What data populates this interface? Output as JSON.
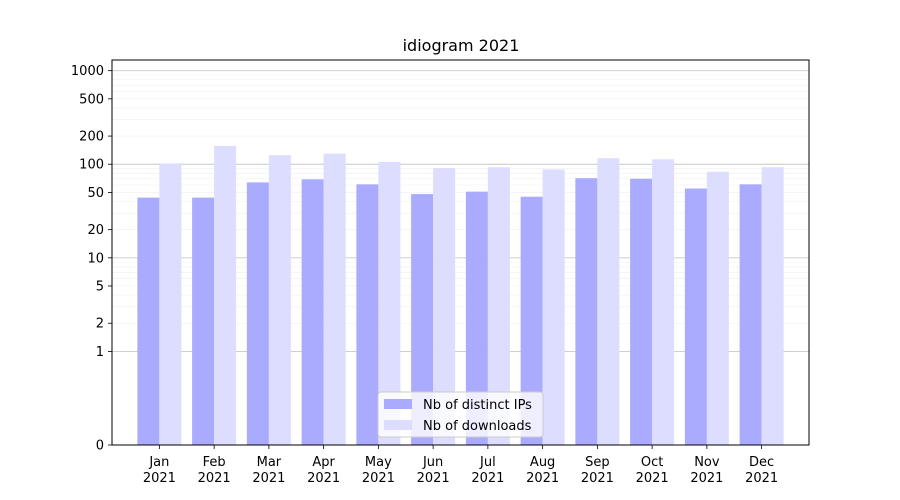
{
  "chart_data": {
    "type": "bar",
    "title": "idiogram 2021",
    "xlabel": "",
    "ylabel": "",
    "y_scale": "symlog",
    "ylim": [
      0,
      1300
    ],
    "y_ticks": [
      0,
      1,
      2,
      5,
      10,
      20,
      50,
      100,
      200,
      500,
      1000
    ],
    "y_tick_labels": [
      "0",
      "1",
      "2",
      "5",
      "10",
      "20",
      "50",
      "100",
      "200",
      "500",
      "1000"
    ],
    "grid": true,
    "legend_position": "bottom-center",
    "categories": [
      {
        "month": "Jan",
        "year": "2021"
      },
      {
        "month": "Feb",
        "year": "2021"
      },
      {
        "month": "Mar",
        "year": "2021"
      },
      {
        "month": "Apr",
        "year": "2021"
      },
      {
        "month": "May",
        "year": "2021"
      },
      {
        "month": "Jun",
        "year": "2021"
      },
      {
        "month": "Jul",
        "year": "2021"
      },
      {
        "month": "Aug",
        "year": "2021"
      },
      {
        "month": "Sep",
        "year": "2021"
      },
      {
        "month": "Oct",
        "year": "2021"
      },
      {
        "month": "Nov",
        "year": "2021"
      },
      {
        "month": "Dec",
        "year": "2021"
      }
    ],
    "series": [
      {
        "name": "Nb of distinct IPs",
        "color": "#aaaaff",
        "values": [
          44,
          44,
          64,
          69,
          61,
          48,
          51,
          45,
          71,
          70,
          55,
          61
        ]
      },
      {
        "name": "Nb of downloads",
        "color": "#ddddff",
        "values": [
          102,
          157,
          125,
          130,
          106,
          91,
          93,
          88,
          116,
          113,
          83,
          93
        ]
      }
    ]
  }
}
